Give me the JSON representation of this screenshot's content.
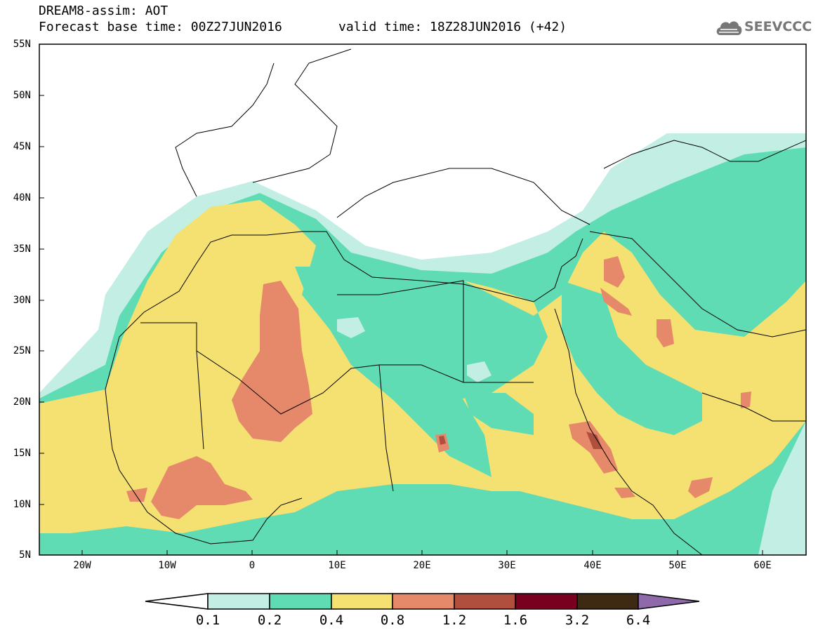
{
  "header": {
    "title": "DREAM8-assim: AOT",
    "base_time": "Forecast base time: 00Z27JUN2016",
    "valid_time": "valid time: 18Z28JUN2016 (+42)",
    "logo_text": "SEEVCCC"
  },
  "axes": {
    "lat_labels": [
      "55N",
      "50N",
      "45N",
      "40N",
      "35N",
      "30N",
      "25N",
      "20N",
      "15N",
      "10N",
      "5N"
    ],
    "lon_labels": [
      "20W",
      "10W",
      "0",
      "10E",
      "20E",
      "30E",
      "40E",
      "50E",
      "60E"
    ],
    "lon_range": [
      -25,
      65
    ],
    "lat_range": [
      5,
      55
    ]
  },
  "legend": {
    "breaks": [
      "0.1",
      "0.2",
      "0.4",
      "0.8",
      "1.2",
      "1.6",
      "3.2",
      "6.4"
    ],
    "colors": [
      "#ffffff",
      "#c2eee4",
      "#5fdcb4",
      "#f5e072",
      "#e6896b",
      "#b14f3e",
      "#7a0020",
      "#3e2a12",
      "#8e6aab"
    ]
  },
  "colors": {
    "aot_0_1_0_2": "#c2eee4",
    "aot_0_2_0_4": "#5fdcb4",
    "aot_0_4_0_8": "#f5e072",
    "aot_0_8_1_2": "#e6896b",
    "aot_1_2_1_6": "#b14f3e"
  }
}
